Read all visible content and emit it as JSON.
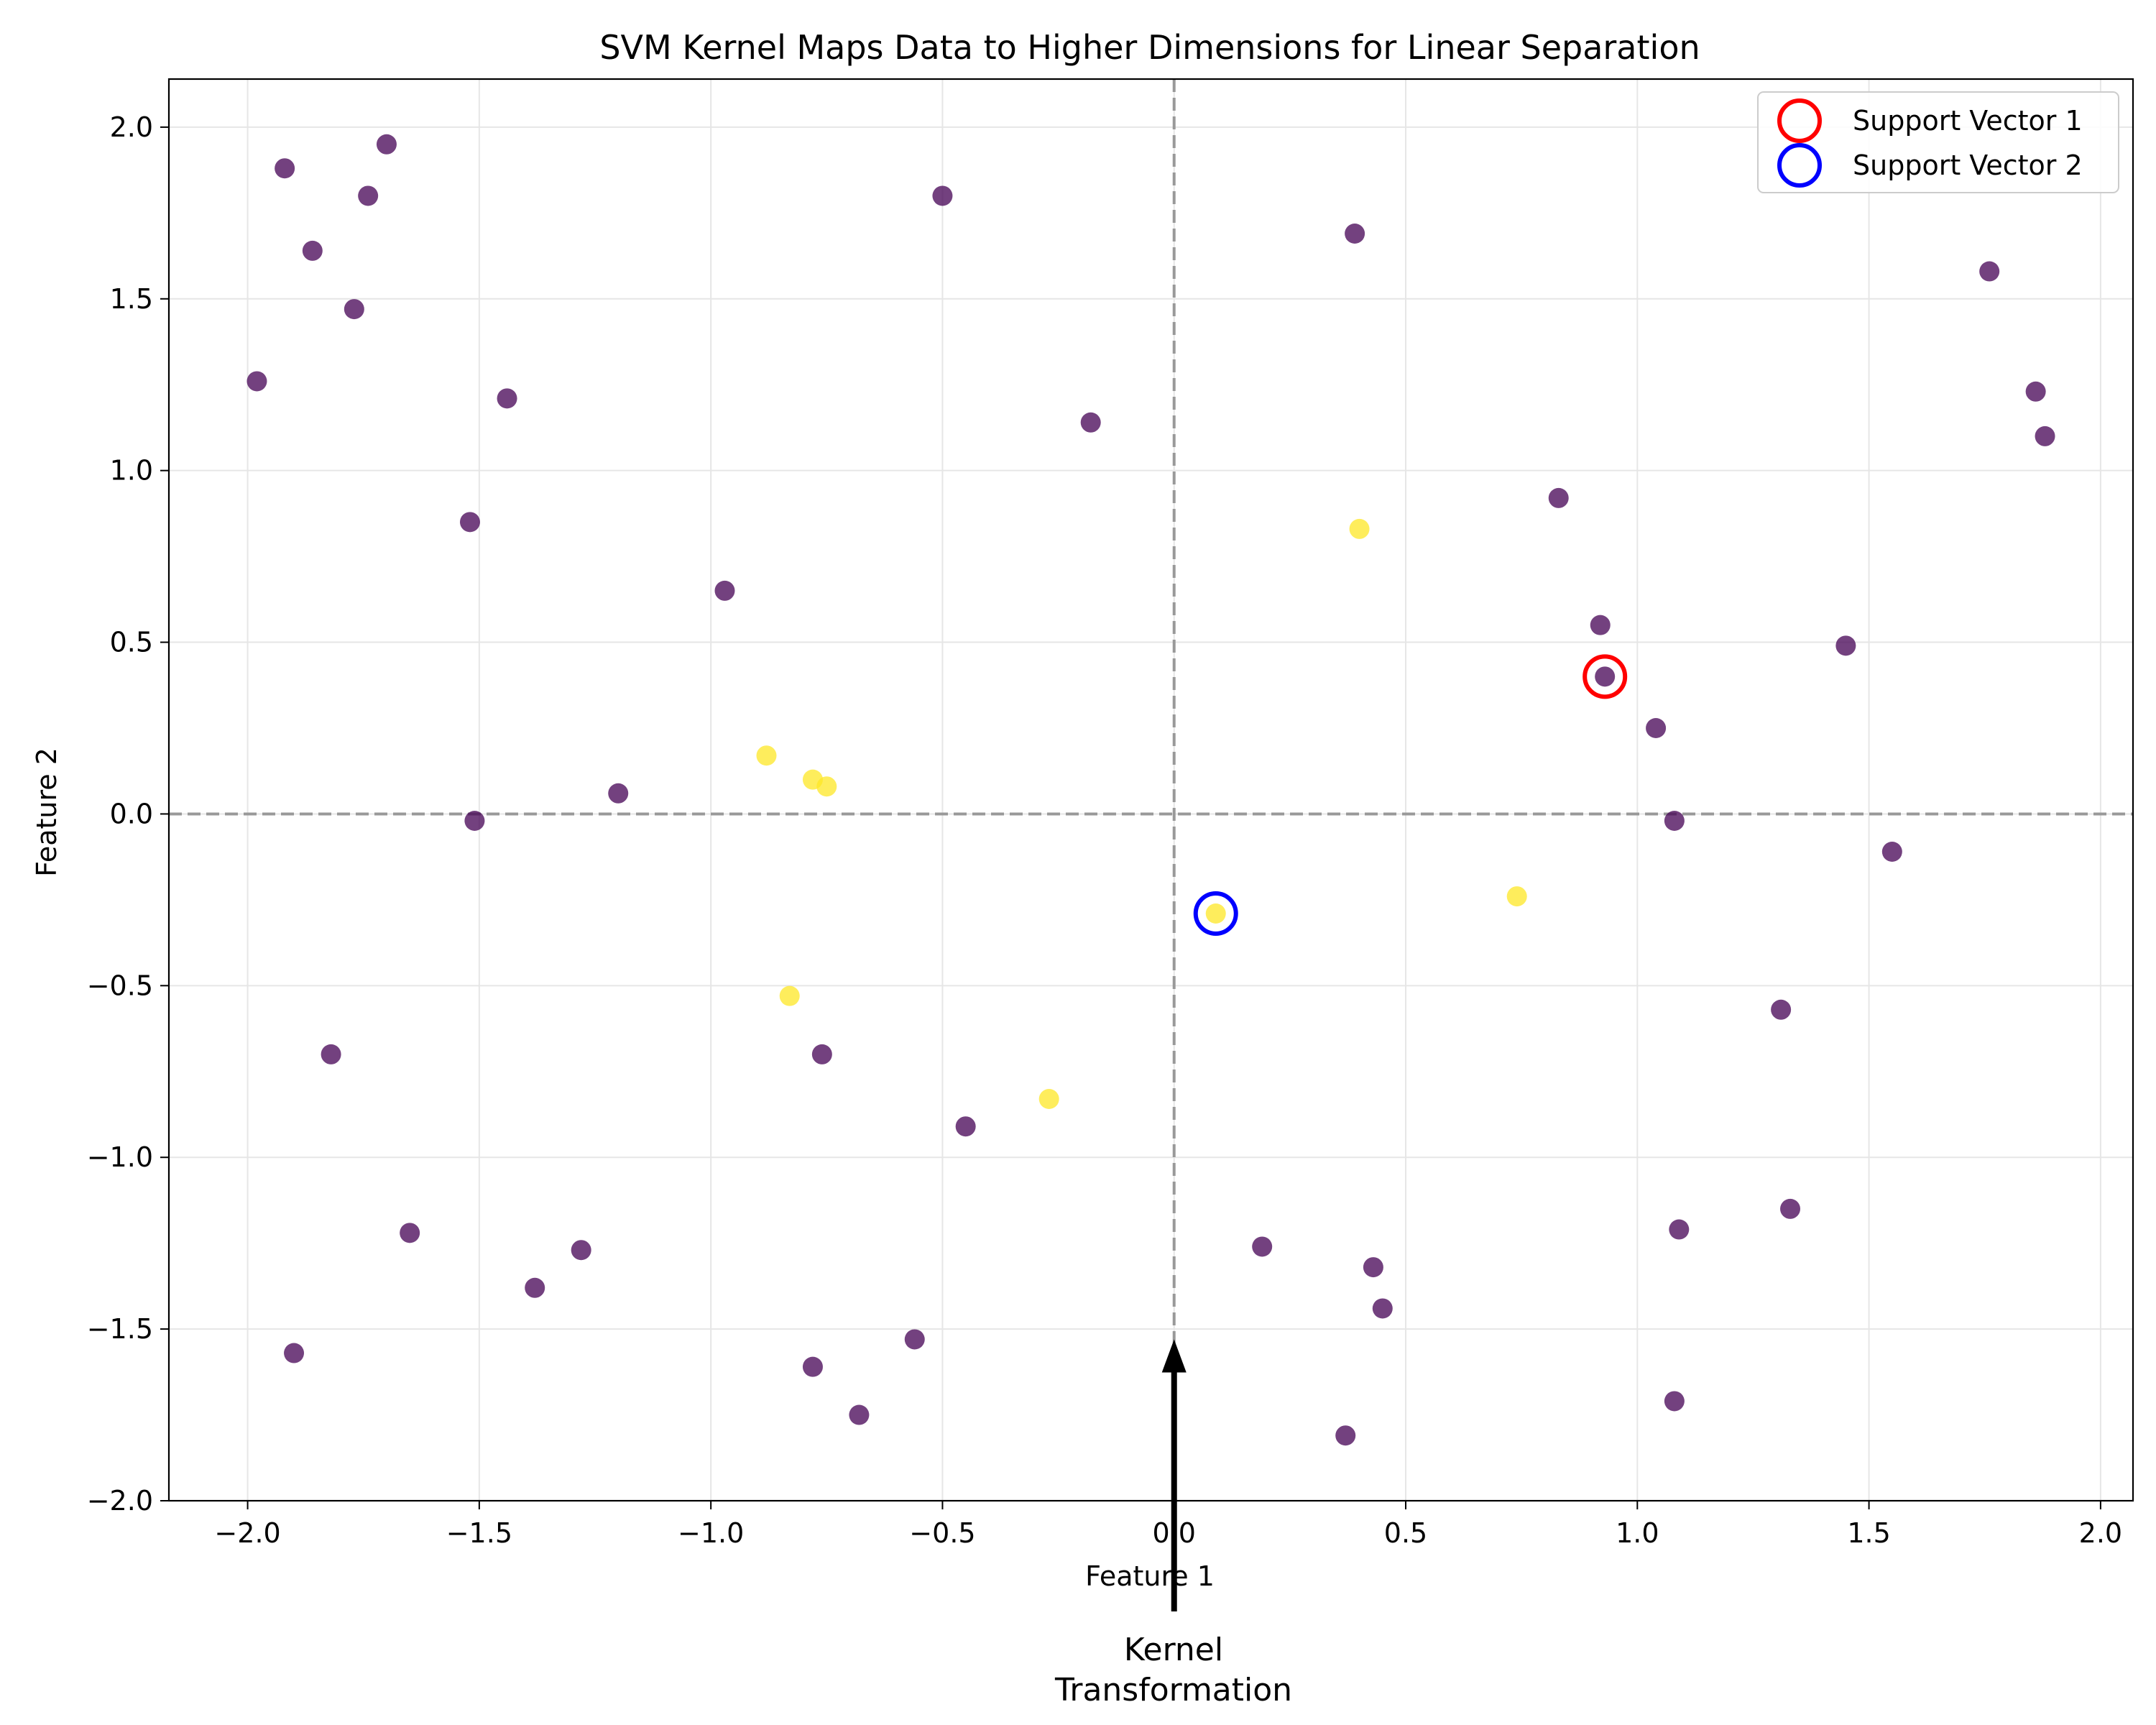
{
  "chart_data": {
    "type": "scatter",
    "title": "SVM Kernel Maps Data to Higher Dimensions for Linear Separation",
    "xlabel": "Feature 1",
    "ylabel": "Feature 2",
    "xlim": [
      -2.17,
      2.07
    ],
    "ylim": [
      -2.0,
      2.14
    ],
    "xticks": [
      -2.0,
      -1.5,
      -1.0,
      -0.5,
      0.0,
      0.5,
      1.0,
      1.5,
      2.0
    ],
    "yticks": [
      -2.0,
      -1.5,
      -1.0,
      -0.5,
      0.0,
      0.5,
      1.0,
      1.5,
      2.0
    ],
    "grid": true,
    "legend_position": "top-right",
    "reference_lines": {
      "x": 0.0,
      "y": 0.0,
      "style": "dashed",
      "color": "#999999"
    },
    "series": [
      {
        "color": "#440154",
        "points": [
          [
            -1.92,
            1.88
          ],
          [
            -1.7,
            1.95
          ],
          [
            -1.74,
            1.8
          ],
          [
            -1.86,
            1.64
          ],
          [
            -1.77,
            1.47
          ],
          [
            -1.98,
            1.26
          ],
          [
            -1.44,
            1.21
          ],
          [
            -1.52,
            0.85
          ],
          [
            -0.97,
            0.65
          ],
          [
            -1.2,
            0.06
          ],
          [
            -1.51,
            -0.02
          ],
          [
            -0.5,
            1.8
          ],
          [
            -0.18,
            1.14
          ],
          [
            0.39,
            1.69
          ],
          [
            0.83,
            0.92
          ],
          [
            0.92,
            0.55
          ],
          [
            0.93,
            0.4
          ],
          [
            1.04,
            0.25
          ],
          [
            1.08,
            -0.02
          ],
          [
            1.45,
            0.49
          ],
          [
            1.55,
            -0.11
          ],
          [
            1.76,
            1.58
          ],
          [
            1.86,
            1.23
          ],
          [
            1.88,
            1.1
          ],
          [
            1.31,
            -0.57
          ],
          [
            1.33,
            -1.15
          ],
          [
            1.09,
            -1.21
          ],
          [
            1.08,
            -1.71
          ],
          [
            0.19,
            -1.26
          ],
          [
            0.43,
            -1.32
          ],
          [
            0.45,
            -1.44
          ],
          [
            0.37,
            -1.81
          ],
          [
            -0.45,
            -0.91
          ],
          [
            -0.76,
            -0.7
          ],
          [
            -0.56,
            -1.53
          ],
          [
            -0.78,
            -1.61
          ],
          [
            -0.68,
            -1.75
          ],
          [
            -1.28,
            -1.27
          ],
          [
            -1.38,
            -1.38
          ],
          [
            -1.65,
            -1.22
          ],
          [
            -1.82,
            -0.7
          ],
          [
            -1.9,
            -1.57
          ]
        ]
      },
      {
        "color": "#fde725",
        "points": [
          [
            -0.88,
            0.17
          ],
          [
            -0.78,
            0.1
          ],
          [
            -0.75,
            0.08
          ],
          [
            0.4,
            0.83
          ],
          [
            0.74,
            -0.24
          ],
          [
            0.09,
            -0.29
          ],
          [
            -0.83,
            -0.53
          ],
          [
            -0.27,
            -0.83
          ]
        ]
      }
    ],
    "support_vectors": [
      {
        "name": "Support Vector 1",
        "x": 0.93,
        "y": 0.4,
        "color": "#ff0000"
      },
      {
        "name": "Support Vector 2",
        "x": 0.09,
        "y": -0.29,
        "color": "#0000ff"
      }
    ],
    "annotation": {
      "text_line1": "Kernel",
      "text_line2": "Transformation",
      "arrow_to": [
        0.0,
        -1.53
      ]
    }
  }
}
